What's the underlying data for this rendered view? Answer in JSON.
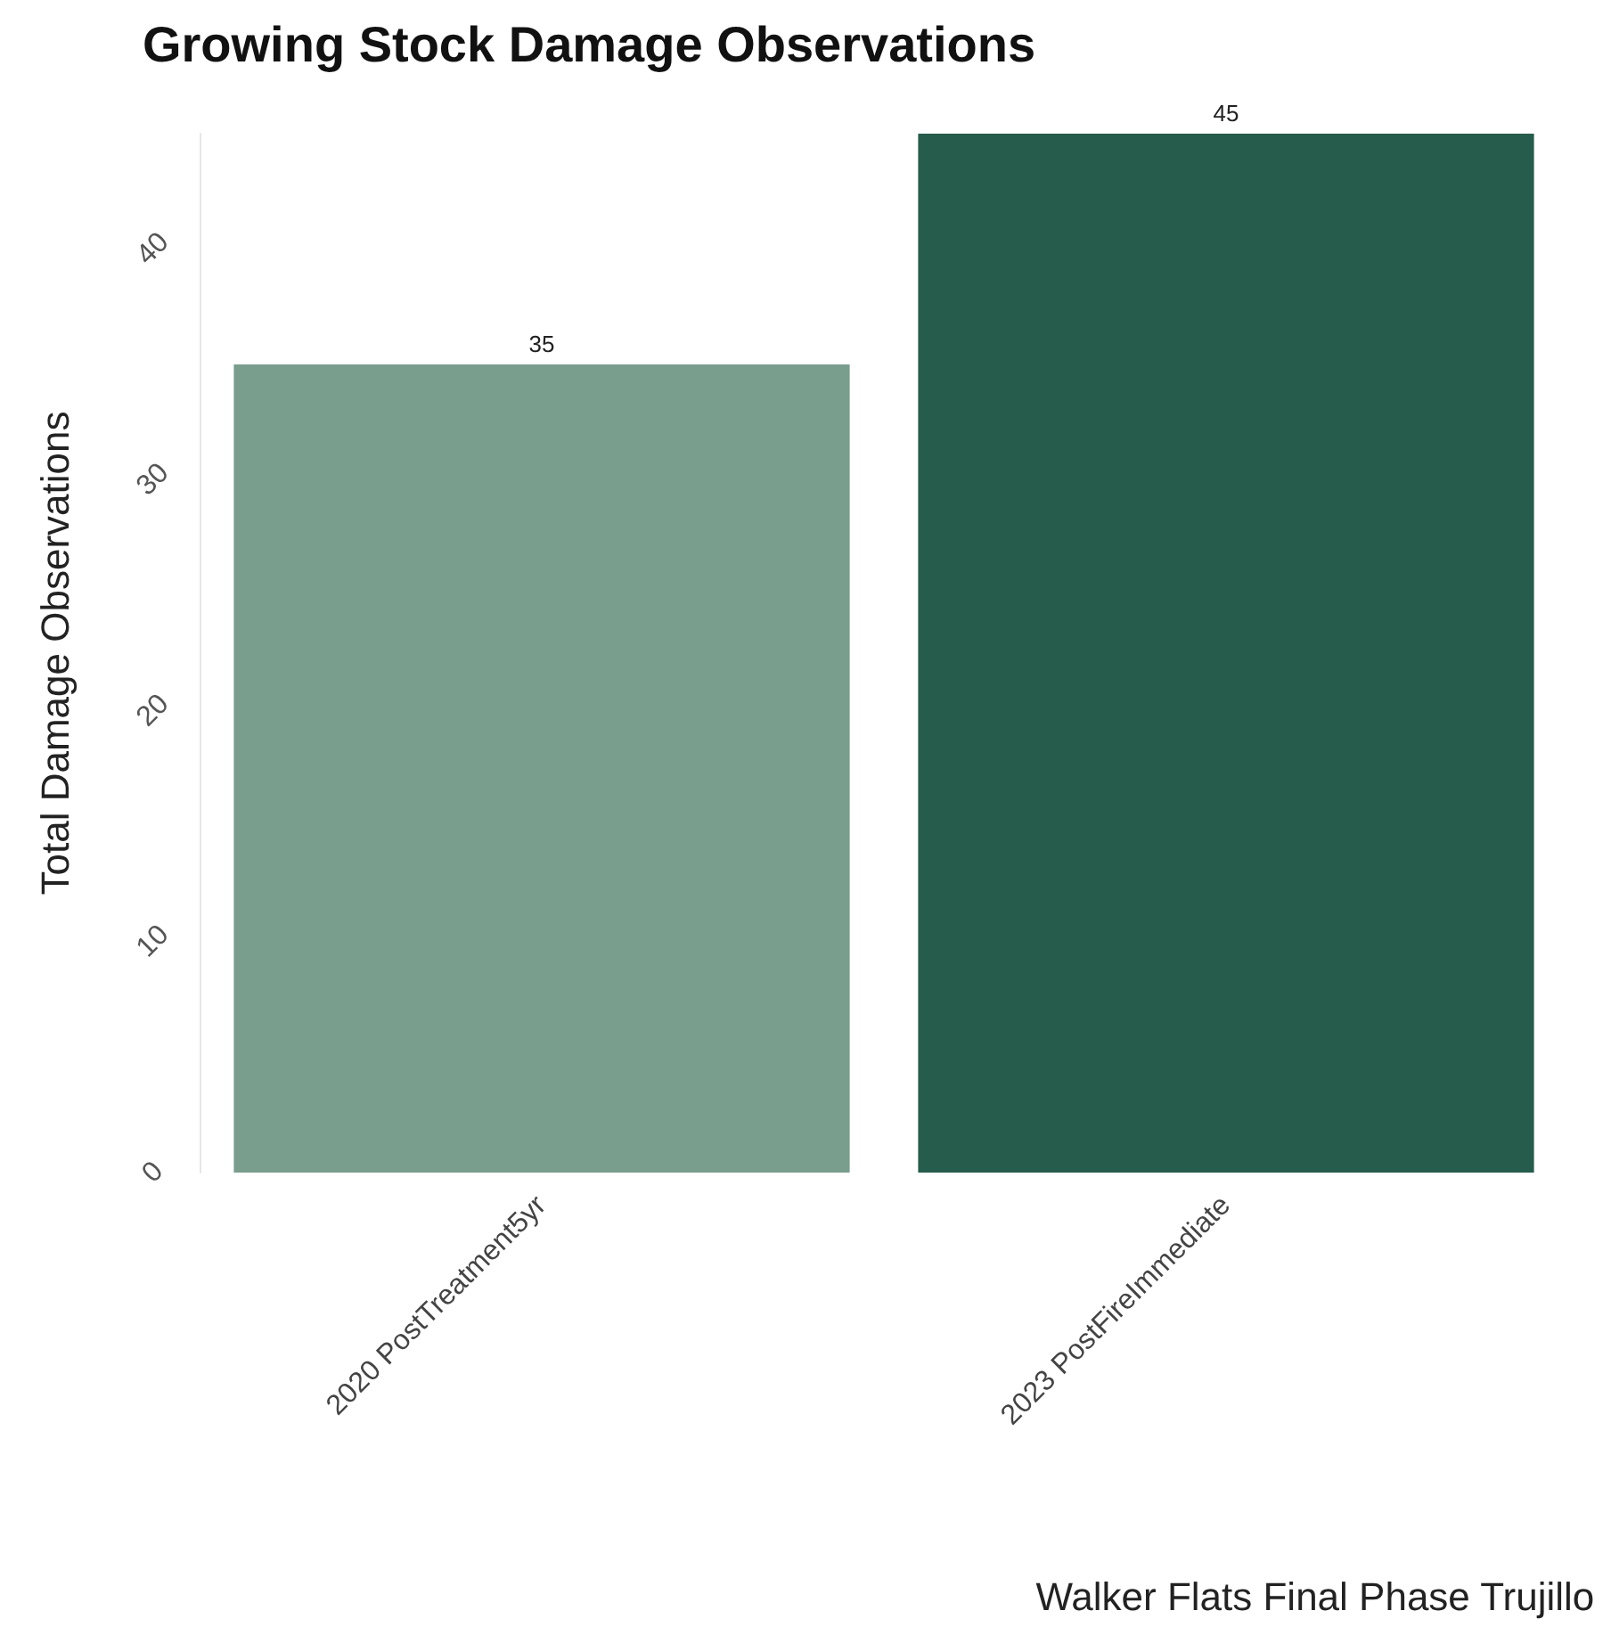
{
  "chart_data": {
    "type": "bar",
    "title": "Growing Stock Damage Observations",
    "xlabel": "Walker Flats Final Phase Trujillo",
    "ylabel": "Total Damage Observations",
    "categories": [
      "2020 PostTreatment5yr",
      "2023 PostFireImmediate"
    ],
    "values": [
      35,
      45
    ],
    "colors": [
      "#7a9e8e",
      "#265c4b"
    ],
    "ylim": [
      0,
      45
    ],
    "yticks": [
      0,
      10,
      20,
      30,
      40
    ],
    "grid": false,
    "data_labels": true
  }
}
